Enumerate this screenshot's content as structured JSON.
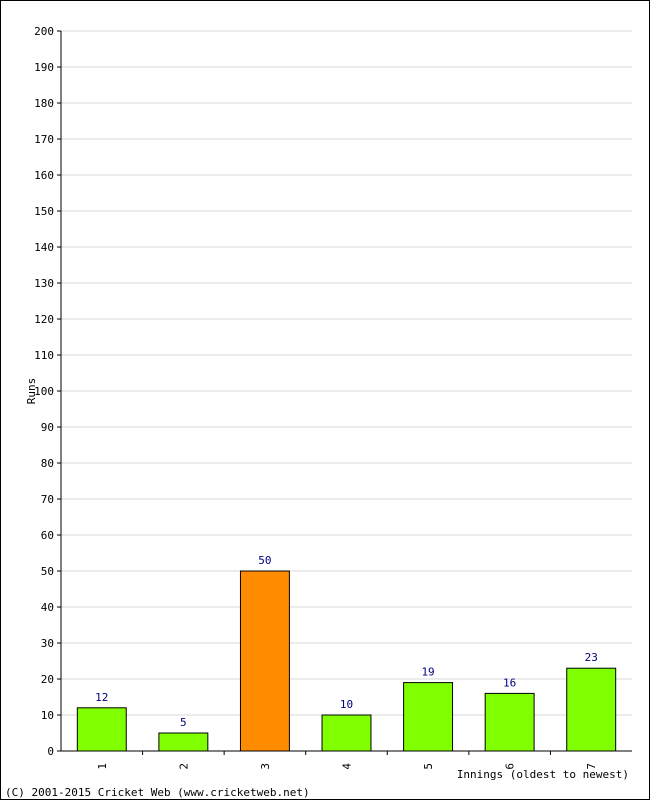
{
  "chart_data": {
    "type": "bar",
    "categories": [
      "1",
      "2",
      "3",
      "4",
      "5",
      "6",
      "7"
    ],
    "values": [
      12,
      5,
      50,
      10,
      19,
      16,
      23
    ],
    "highlight_index": 2,
    "xlabel": "Innings (oldest to newest)",
    "ylabel": "Runs",
    "ylim": [
      0,
      200
    ],
    "ytick_step": 10,
    "grid": true,
    "colors": {
      "bar": "#7fff00",
      "highlight_bar": "#ff8c00",
      "bar_outline": "#000000",
      "grid": "#d8d8d8",
      "data_label": "#000080"
    }
  },
  "footer": {
    "copyright": "(C) 2001-2015 Cricket Web (www.cricketweb.net)"
  }
}
